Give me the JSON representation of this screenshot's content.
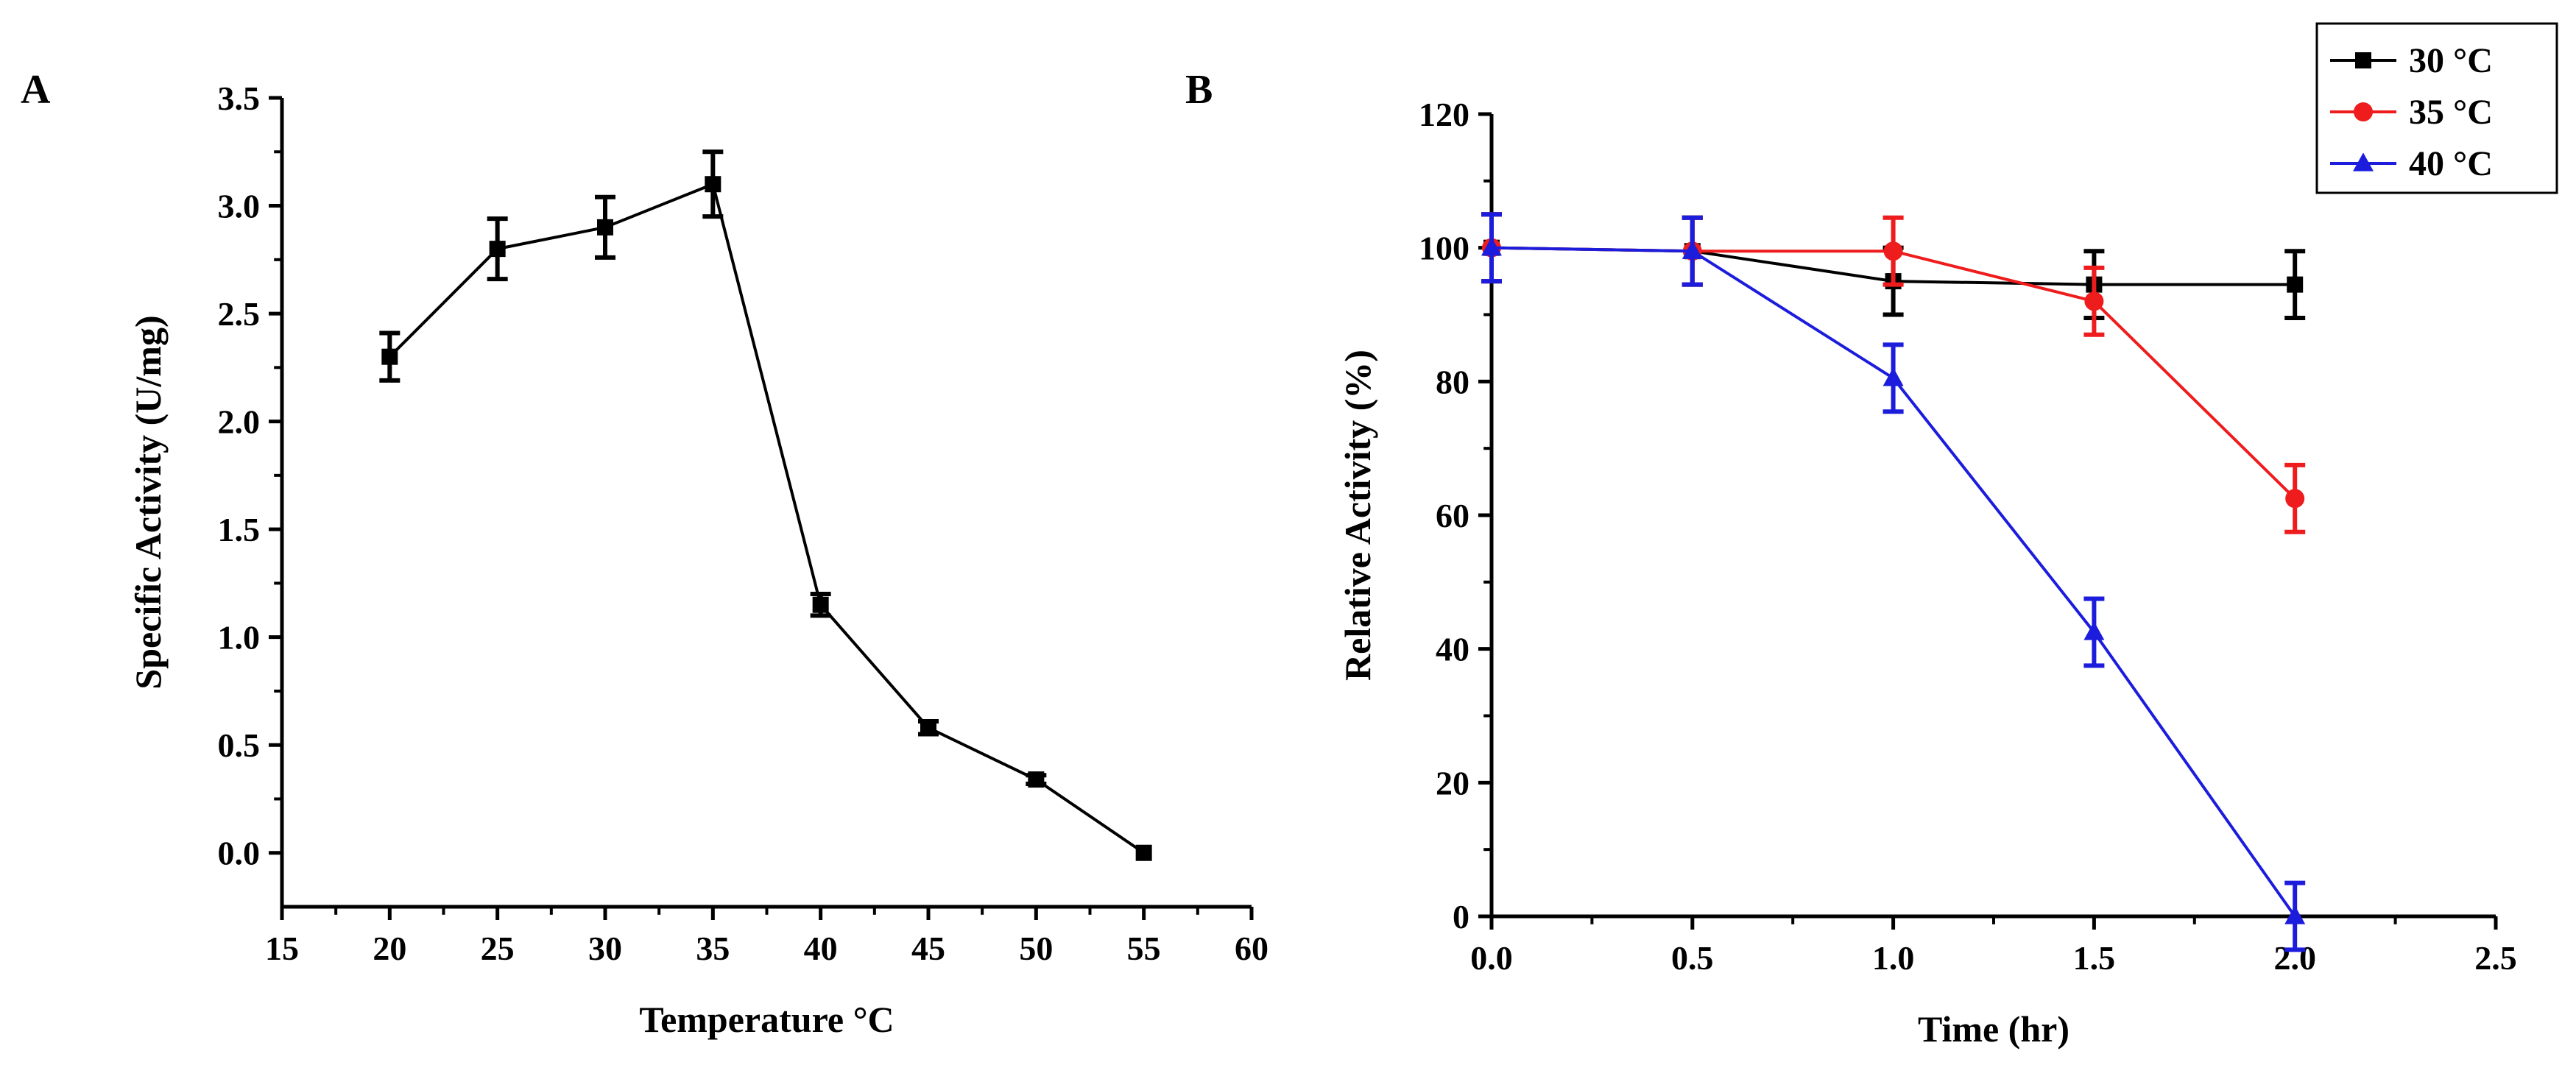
{
  "chart_data": [
    {
      "panel": "A",
      "type": "line",
      "title": "",
      "xlabel": "Temperature °C",
      "ylabel": "Specific Activity (U/mg)",
      "xlim": [
        15,
        60
      ],
      "ylim": [
        -0.25,
        3.5
      ],
      "xticks": [
        15,
        20,
        25,
        30,
        35,
        40,
        45,
        50,
        55,
        60
      ],
      "yticks": [
        0.0,
        0.5,
        1.0,
        1.5,
        2.0,
        2.5,
        3.0,
        3.5
      ],
      "xtick_labels": [
        "15",
        "20",
        "25",
        "30",
        "35",
        "40",
        "45",
        "50",
        "55",
        "60"
      ],
      "ytick_labels": [
        "0.0",
        "0.5",
        "1.0",
        "1.5",
        "2.0",
        "2.5",
        "3.0",
        "3.5"
      ],
      "grid": false,
      "legend": "none",
      "series": [
        {
          "name": "Specific activity",
          "color": "#000000",
          "marker": "square",
          "x": [
            20,
            25,
            30,
            35,
            40,
            45,
            50,
            55
          ],
          "y": [
            2.3,
            2.8,
            2.9,
            3.1,
            1.15,
            0.58,
            0.34,
            0.0
          ],
          "err": [
            0.11,
            0.14,
            0.14,
            0.15,
            0.05,
            0.03,
            0.02,
            0.0
          ]
        }
      ]
    },
    {
      "panel": "B",
      "type": "line",
      "title": "",
      "xlabel": "Time (hr)",
      "ylabel": "Relative Activity (%)",
      "xlim": [
        0,
        2.5
      ],
      "ylim": [
        0,
        120
      ],
      "xticks": [
        0,
        0.5,
        1.0,
        1.5,
        2.0,
        2.5
      ],
      "yticks": [
        0,
        20,
        40,
        60,
        80,
        100,
        120
      ],
      "xtick_labels": [
        "0.0",
        "0.5",
        "1.0",
        "1.5",
        "2.0",
        "2.5"
      ],
      "ytick_labels": [
        "0",
        "20",
        "40",
        "60",
        "80",
        "100",
        "120"
      ],
      "grid": false,
      "legend": "top-right",
      "series": [
        {
          "name": "30 °C",
          "color": "#000000",
          "marker": "square",
          "x": [
            0,
            0.5,
            1.0,
            1.5,
            2.0
          ],
          "y": [
            100,
            99.5,
            95,
            94.5,
            94.5
          ],
          "err": [
            5,
            5,
            5,
            5,
            5
          ]
        },
        {
          "name": "35 °C",
          "color": "#ee1c1c",
          "marker": "circle",
          "x": [
            0,
            0.5,
            1.0,
            1.5,
            2.0
          ],
          "y": [
            100,
            99.5,
            99.5,
            92,
            62.5
          ],
          "err": [
            5,
            5,
            5,
            5,
            5
          ]
        },
        {
          "name": "40 °C",
          "color": "#1c1cdd",
          "marker": "triangle",
          "x": [
            0,
            0.5,
            1.0,
            1.5,
            2.0
          ],
          "y": [
            100,
            99.5,
            80.5,
            42.5,
            0
          ],
          "err": [
            5,
            5,
            5,
            5,
            5
          ]
        }
      ]
    }
  ]
}
